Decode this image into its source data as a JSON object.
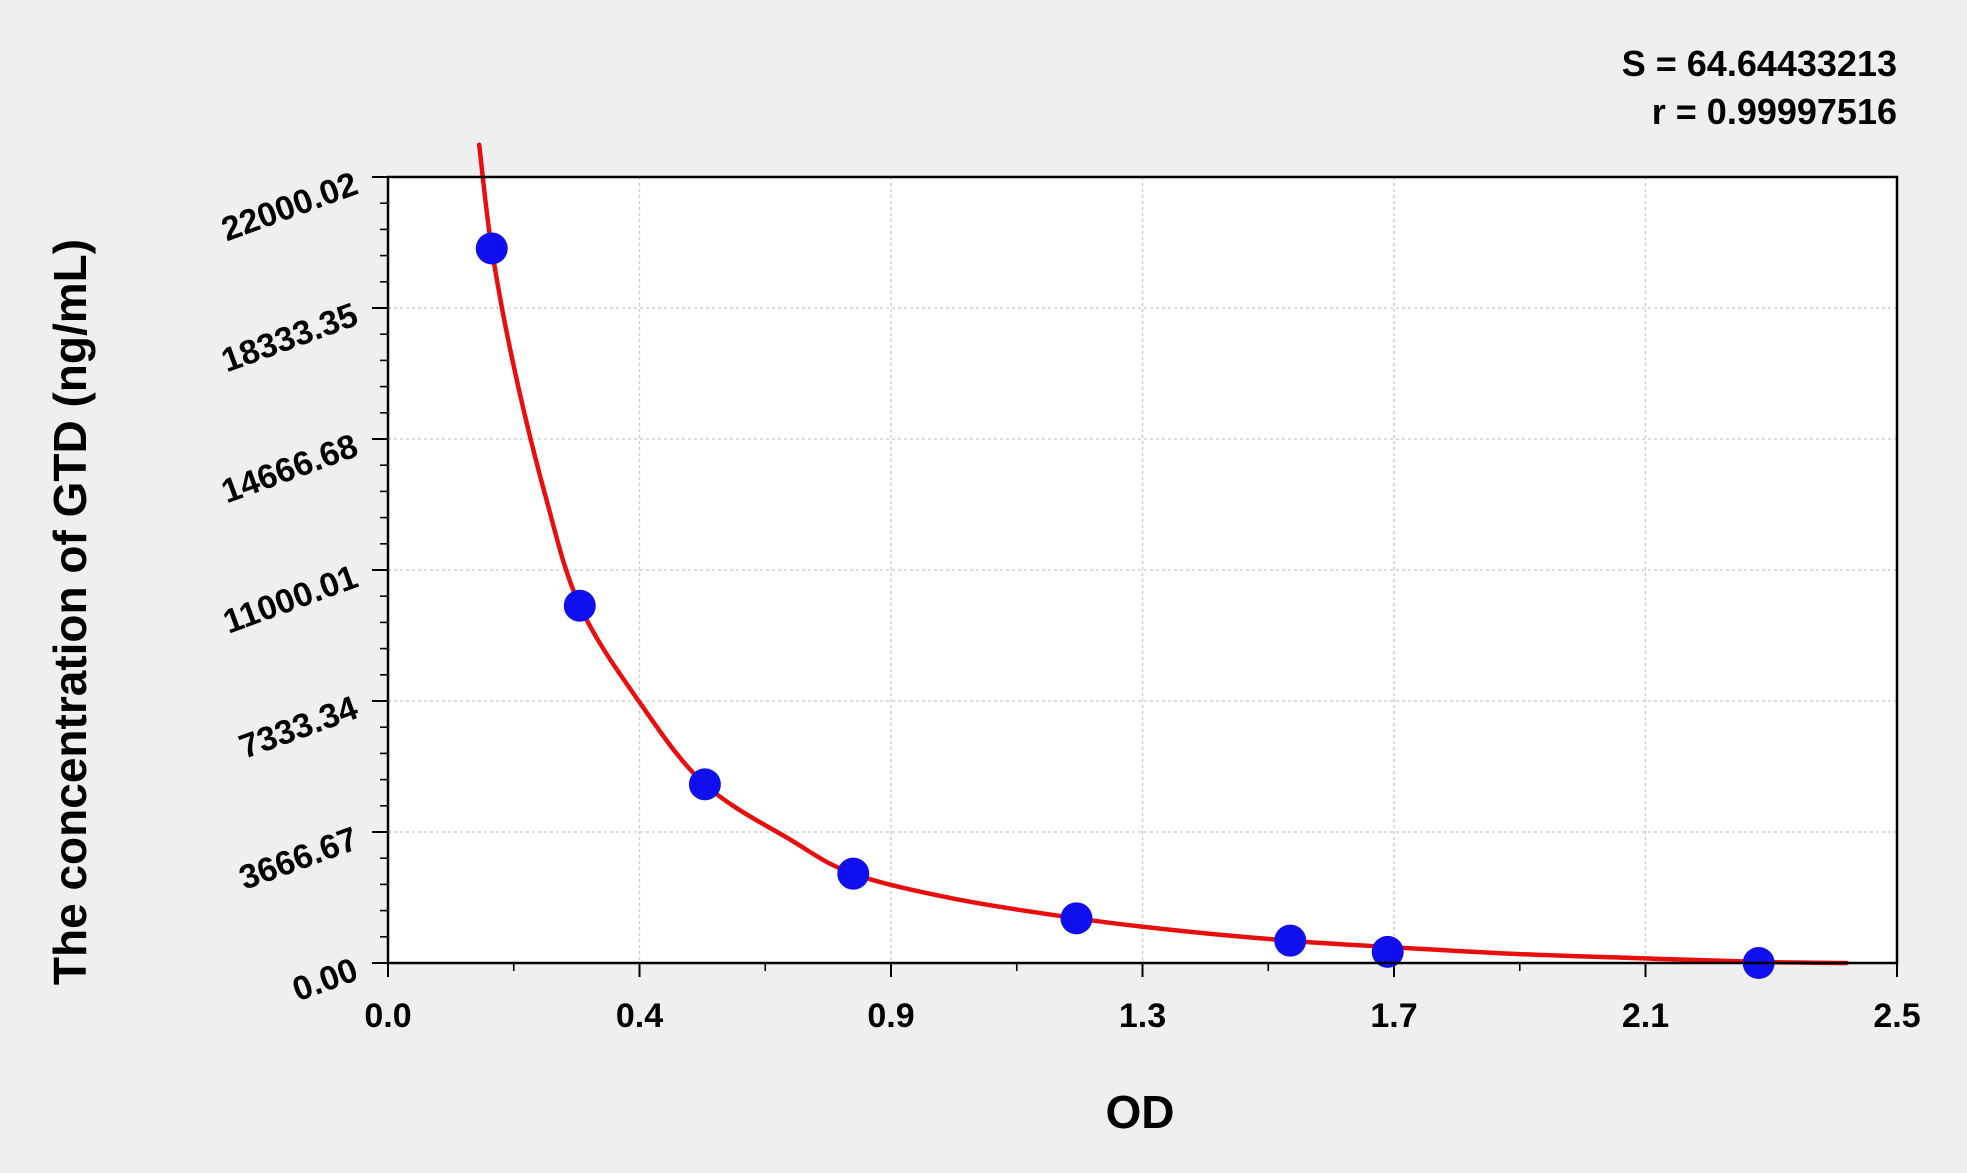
{
  "chart_data": {
    "type": "scatter",
    "xlabel": "OD",
    "ylabel": "The concentration of GTD (ng/mL)",
    "annotations": [
      "S = 64.64433213",
      "r = 0.99997516"
    ],
    "xlim": [
      0.0,
      2.5
    ],
    "ylim": [
      0.0,
      22000.02
    ],
    "x_ticks": [
      0.0,
      0.4,
      0.9,
      1.3,
      1.7,
      2.1,
      2.5
    ],
    "x_tick_labels": [
      "0.0",
      "0.4",
      "0.9",
      "1.3",
      "1.7",
      "2.1",
      "2.5"
    ],
    "y_ticks": [
      0.0,
      3666.67,
      7333.34,
      11000.01,
      14666.68,
      18333.35,
      22000.02
    ],
    "y_tick_labels": [
      "0.00",
      "3666.67",
      "7333.34",
      "11000.01",
      "14666.68",
      "18333.35",
      "22000.02"
    ],
    "grid": true,
    "series": [
      {
        "kind": "points",
        "color": "#1010ee",
        "x": [
          0.165,
          0.305,
          0.53,
          0.825,
          1.195,
          1.535,
          1.69,
          2.28
        ],
        "y": [
          20000,
          10000,
          5000,
          2500,
          1250,
          625,
          312,
          0
        ]
      },
      {
        "kind": "fit-curve",
        "color": "#e80e0e",
        "x": [
          0.145,
          0.165,
          0.2,
          0.25,
          0.305,
          0.4,
          0.53,
          0.7,
          0.825,
          1.0,
          1.195,
          1.35,
          1.535,
          1.69,
          1.9,
          2.1,
          2.28,
          2.42
        ],
        "y": [
          22900,
          20000,
          16700,
          13100,
          10000,
          7300,
          5000,
          3450,
          2500,
          1800,
          1250,
          920,
          625,
          450,
          250,
          130,
          30,
          0
        ]
      }
    ]
  }
}
